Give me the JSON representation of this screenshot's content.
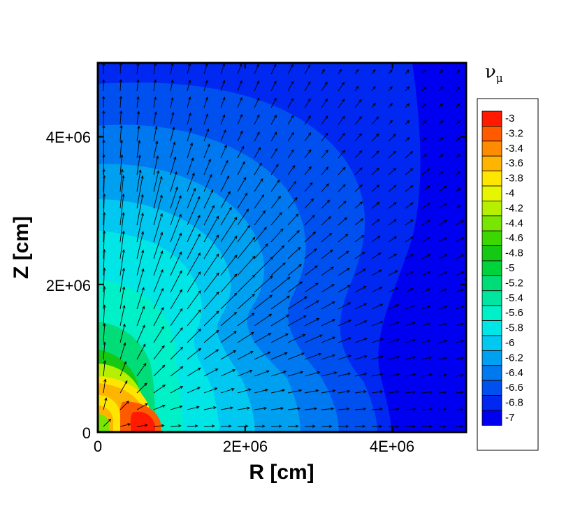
{
  "chart_data": {
    "type": "heatmap",
    "title": "",
    "xlabel": "R [cm]",
    "ylabel": "Z [cm]",
    "xlim": [
      0,
      5000000
    ],
    "ylim": [
      0,
      5000000
    ],
    "x_ticks": [
      "0",
      "2E+06",
      "4E+06"
    ],
    "y_ticks": [
      "0",
      "2E+06",
      "4E+06"
    ],
    "x_tick_values": [
      0,
      2000000,
      4000000
    ],
    "y_tick_values": [
      0,
      2000000,
      4000000
    ],
    "grid": false,
    "vector_overlay": true,
    "colorbar": {
      "title": "ν",
      "title_subscript": "μ",
      "placement": "right",
      "levels": [
        "-3",
        "-3.2",
        "-3.4",
        "-3.6",
        "-3.8",
        "-4",
        "-4.2",
        "-4.4",
        "-4.6",
        "-4.8",
        "-5",
        "-5.2",
        "-5.4",
        "-5.6",
        "-5.8",
        "-6",
        "-6.2",
        "-6.4",
        "-6.6",
        "-6.8",
        "-7"
      ],
      "colors": [
        "#ff1a00",
        "#ff5a00",
        "#ff8c00",
        "#ffb400",
        "#ffe600",
        "#e6f500",
        "#b4f000",
        "#78e600",
        "#3cd700",
        "#14c814",
        "#00d23c",
        "#00dc78",
        "#00e6a0",
        "#00f0c8",
        "#00e6e6",
        "#00c8f0",
        "#00a0f0",
        "#0078f0",
        "#0050f0",
        "#0028f0",
        "#0000f0"
      ]
    },
    "contour_levels_radial": [
      {
        "value": -3.0,
        "color": "#ff1a00"
      },
      {
        "value": -3.4,
        "color": "#ff8c00"
      },
      {
        "value": -4.0,
        "color": "#e6f500"
      },
      {
        "value": -4.6,
        "color": "#3cd700"
      },
      {
        "value": -5.2,
        "color": "#00dc78"
      },
      {
        "value": -5.8,
        "color": "#00e6e6"
      },
      {
        "value": -6.2,
        "color": "#00a0f0"
      },
      {
        "value": -6.6,
        "color": "#0050f0"
      },
      {
        "value": -6.8,
        "color": "#0028f0"
      },
      {
        "value": -7.0,
        "color": "#0000f0"
      }
    ]
  }
}
